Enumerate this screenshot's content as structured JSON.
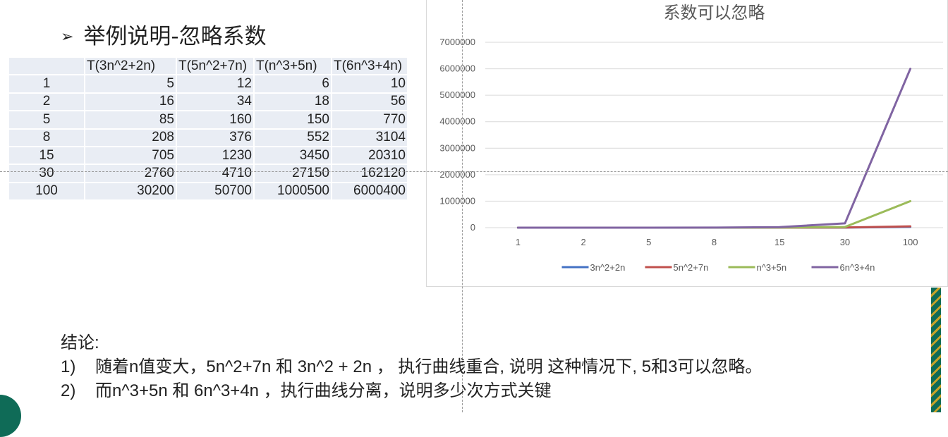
{
  "heading": {
    "bullet": "➢",
    "text": "举例说明-忽略系数"
  },
  "table": {
    "headers": [
      "",
      "T(3n^2+2n)",
      "T(5n^2+7n)",
      "T(n^3+5n)",
      "T(6n^3+4n)"
    ],
    "rows": [
      [
        "1",
        "5",
        "12",
        "6",
        "10"
      ],
      [
        "2",
        "16",
        "34",
        "18",
        "56"
      ],
      [
        "5",
        "85",
        "160",
        "150",
        "770"
      ],
      [
        "8",
        "208",
        "376",
        "552",
        "3104"
      ],
      [
        "15",
        "705",
        "1230",
        "3450",
        "20310"
      ],
      [
        "30",
        "2760",
        "4710",
        "27150",
        "162120"
      ],
      [
        "100",
        "30200",
        "50700",
        "1000500",
        "6000400"
      ]
    ]
  },
  "chart_data": {
    "type": "line",
    "title": "系数可以忽略",
    "categories": [
      "1",
      "2",
      "5",
      "8",
      "15",
      "30",
      "100"
    ],
    "ylim": [
      0,
      7000000
    ],
    "yticks": [
      "0",
      "1000000",
      "2000000",
      "3000000",
      "4000000",
      "5000000",
      "6000000",
      "7000000"
    ],
    "grid": true,
    "legend_position": "bottom",
    "series": [
      {
        "name": "3n^2+2n",
        "color": "#4472c4",
        "values": [
          5,
          16,
          85,
          208,
          705,
          2760,
          30200
        ]
      },
      {
        "name": "5n^2+7n",
        "color": "#c0504d",
        "values": [
          12,
          34,
          160,
          376,
          1230,
          4710,
          50700
        ]
      },
      {
        "name": "n^3+5n",
        "color": "#9bbb59",
        "values": [
          6,
          18,
          150,
          552,
          3450,
          27150,
          1000500
        ]
      },
      {
        "name": "6n^3+4n",
        "color": "#8064a2",
        "values": [
          10,
          56,
          770,
          3104,
          20310,
          162120,
          6000400
        ]
      }
    ]
  },
  "conclusion": {
    "title": "结论:",
    "items": [
      {
        "num": "1)",
        "text": "随着n值变大，5n^2+7n 和 3n^2 + 2n ， 执行曲线重合, 说明  这种情况下, 5和3可以忽略。"
      },
      {
        "num": "2)",
        "text": "而n^3+5n 和 6n^3+4n  ，执行曲线分离，说明多少次方式关键"
      }
    ]
  }
}
